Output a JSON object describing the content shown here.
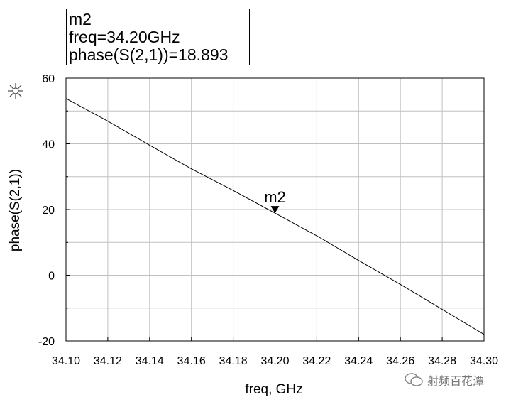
{
  "marker_box": {
    "name": "m2",
    "freq": "freq=34.20GHz",
    "phase": "phase(S(2,1))=18.893"
  },
  "watermark": {
    "text": "射频百花潭"
  },
  "chart_data": {
    "type": "line",
    "xlabel": "freq, GHz",
    "ylabel": "phase(S(2,1))",
    "xlim": [
      34.1,
      34.3
    ],
    "ylim": [
      -20,
      60
    ],
    "x_ticks": [
      "34.10",
      "34.12",
      "34.14",
      "34.16",
      "34.18",
      "34.20",
      "34.22",
      "34.24",
      "34.26",
      "34.28",
      "34.30"
    ],
    "y_ticks": [
      "60",
      "40",
      "20",
      "0",
      "-20"
    ],
    "grid": true,
    "series": [
      {
        "x": [
          34.1,
          34.12,
          34.14,
          34.16,
          34.18,
          34.2,
          34.22,
          34.24,
          34.26,
          34.28,
          34.3
        ],
        "y": [
          53.8,
          46.9,
          39.6,
          32.4,
          25.8,
          18.893,
          12.0,
          4.5,
          -2.8,
          -10.4,
          -18.0
        ]
      }
    ],
    "marker": {
      "label": "m2",
      "x": 34.2,
      "y": 18.893
    },
    "line_color": "#000000",
    "grid_color": "#c0c0c0"
  }
}
